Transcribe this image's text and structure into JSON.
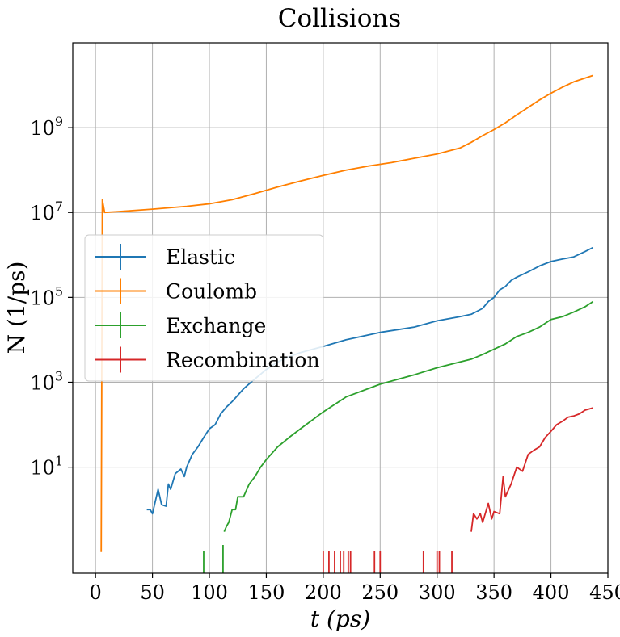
{
  "chart_data": {
    "type": "line",
    "title": "Collisions",
    "xlabel": "t (ps)",
    "ylabel": "N (1/ps)",
    "xlim": [
      -20,
      450
    ],
    "ylim_log10": [
      -1.5,
      11.0
    ],
    "yscale": "log",
    "x_ticks": [
      0,
      50,
      100,
      150,
      200,
      250,
      300,
      350,
      400,
      450
    ],
    "y_ticks": [
      {
        "exp": 1,
        "label": "10",
        "sup": "1"
      },
      {
        "exp": 3,
        "label": "10",
        "sup": "3"
      },
      {
        "exp": 5,
        "label": "10",
        "sup": "5"
      },
      {
        "exp": 7,
        "label": "10",
        "sup": "7"
      },
      {
        "exp": 9,
        "label": "10",
        "sup": "9"
      }
    ],
    "grid": true,
    "legend_position": "left",
    "series": [
      {
        "name": "Elastic",
        "color": "#1f77b4",
        "x": [
          45,
          48,
          50,
          55,
          58,
          62,
          64,
          66,
          70,
          75,
          78,
          80,
          85,
          90,
          95,
          100,
          105,
          110,
          115,
          120,
          130,
          140,
          150,
          160,
          170,
          180,
          200,
          220,
          250,
          280,
          300,
          320,
          330,
          340,
          345,
          350,
          355,
          360,
          365,
          370,
          380,
          390,
          400,
          410,
          420,
          430,
          437
        ],
        "y": [
          1,
          1,
          0.8,
          3,
          1.3,
          1.2,
          4,
          3,
          7,
          9,
          6,
          10,
          20,
          30,
          50,
          80,
          100,
          180,
          260,
          350,
          700,
          1200,
          2000,
          3000,
          4000,
          5000,
          7000,
          10000,
          15000,
          20000,
          28000,
          35000,
          40000,
          55000,
          80000,
          100000,
          150000,
          180000,
          250000,
          300000,
          400000,
          550000,
          700000,
          800000,
          900000,
          1200000,
          1500000
        ]
      },
      {
        "name": "Coulomb",
        "color": "#ff7f00",
        "x": [
          5,
          6,
          8,
          20,
          50,
          80,
          100,
          120,
          140,
          160,
          180,
          200,
          220,
          240,
          260,
          280,
          300,
          320,
          330,
          340,
          350,
          360,
          370,
          380,
          390,
          400,
          410,
          420,
          437
        ],
        "y": [
          0.1,
          20000000,
          10000000,
          10500000,
          12000000,
          14000000,
          16000000,
          20000000,
          28000000,
          40000000,
          55000000,
          75000000,
          100000000,
          125000000,
          150000000,
          190000000,
          240000000,
          330000000,
          450000000,
          650000000,
          900000000,
          1300000000,
          2000000000,
          3000000000,
          4500000000,
          6500000000,
          9000000000,
          12000000000,
          17000000000
        ]
      },
      {
        "name": "Exchange",
        "color": "#2ca02c",
        "x": [
          113,
          115,
          117,
          120,
          123,
          125,
          130,
          135,
          140,
          145,
          150,
          160,
          170,
          180,
          200,
          220,
          250,
          280,
          300,
          320,
          330,
          340,
          350,
          360,
          370,
          380,
          390,
          400,
          410,
          420,
          430,
          437
        ],
        "y": [
          0.3,
          0.4,
          0.5,
          1,
          1,
          2,
          2,
          4,
          6,
          10,
          15,
          30,
          50,
          80,
          200,
          450,
          900,
          1500,
          2200,
          3000,
          3500,
          4500,
          6000,
          8000,
          12000,
          15000,
          20000,
          30000,
          35000,
          45000,
          60000,
          80000
        ]
      },
      {
        "name": "Recombination",
        "color": "#d62728",
        "x": [
          330,
          332,
          335,
          338,
          340,
          345,
          348,
          350,
          355,
          358,
          360,
          365,
          370,
          375,
          380,
          385,
          390,
          395,
          400,
          405,
          410,
          415,
          420,
          425,
          430,
          437
        ],
        "y": [
          0.3,
          0.8,
          0.6,
          0.8,
          0.5,
          1.4,
          0.6,
          0.9,
          0.8,
          6,
          2,
          4,
          10,
          8,
          20,
          25,
          30,
          50,
          70,
          100,
          120,
          150,
          160,
          180,
          220,
          250
        ]
      }
    ],
    "sticks": {
      "exchange_x": [
        95,
        112
      ],
      "recombination_x": [
        200,
        205,
        210,
        215,
        218,
        222,
        224,
        245,
        250,
        288,
        300,
        302,
        313
      ]
    }
  }
}
